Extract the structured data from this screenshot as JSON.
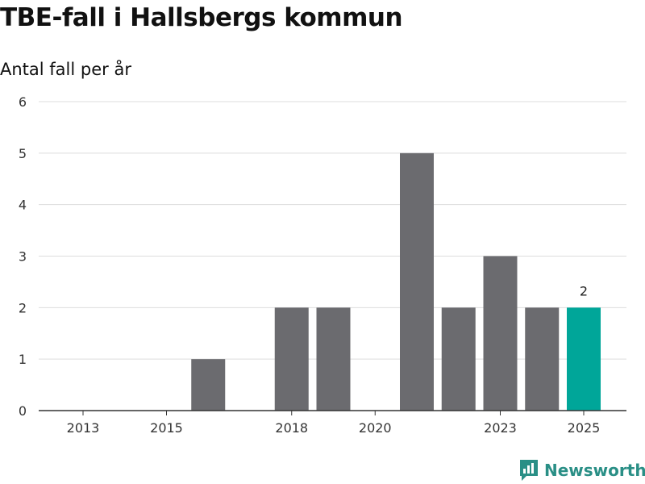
{
  "title": "TBE-fall i Hallsbergs kommun",
  "subtitle": "Antal fall per år",
  "brand": "Newsworthy",
  "colors": {
    "bar": "#6b6b6f",
    "highlight": "#00a699",
    "grid": "#dddddd",
    "axis": "#333333",
    "brand": "#2a8f86"
  },
  "chart_data": {
    "type": "bar",
    "title": "TBE-fall i Hallsbergs kommun",
    "ylabel": "Antal fall per år",
    "xlabel": "",
    "categories": [
      "2013",
      "2014",
      "2015",
      "2016",
      "2017",
      "2018",
      "2019",
      "2020",
      "2021",
      "2022",
      "2023",
      "2024",
      "2025"
    ],
    "values": [
      0,
      0,
      0,
      1,
      0,
      2,
      2,
      0,
      5,
      2,
      3,
      2,
      2
    ],
    "highlight_index": 12,
    "highlight_label": "2",
    "x_tick_labels": [
      "2013",
      "2015",
      "2018",
      "2020",
      "2023",
      "2025"
    ],
    "y_ticks": [
      "0",
      "1",
      "2",
      "3",
      "4",
      "5",
      "6"
    ],
    "ylim": [
      0,
      6
    ],
    "grid": true
  }
}
